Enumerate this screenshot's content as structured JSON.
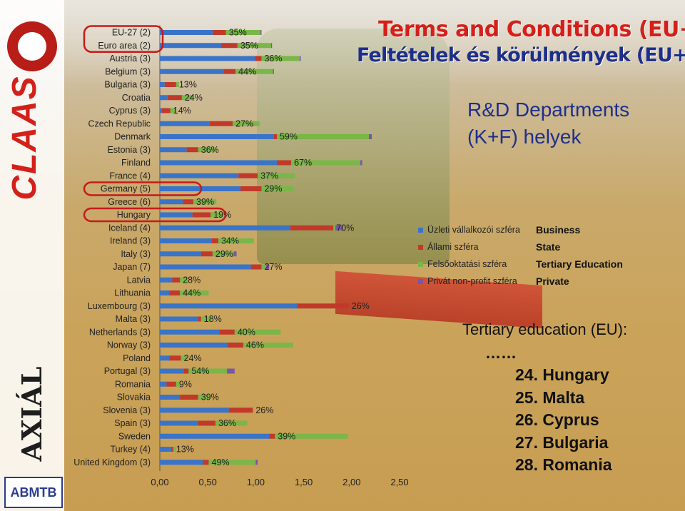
{
  "title_en": "Terms and Conditions (EU+)",
  "title_hu": "Feltételek és körülmények (EU+)",
  "subtitle_line1": "R&D Departments",
  "subtitle_line2": "(K+F) helyek",
  "colors": {
    "business": "#3a74c8",
    "state": "#c0392b",
    "tertiary": "#7ab648",
    "private": "#7a55a8",
    "highlight": "#c41b1b"
  },
  "legend": [
    {
      "hu": "Üzleti vállalkozói szféra",
      "en": "Business",
      "color": "#3a74c8"
    },
    {
      "hu": "Állami szféra",
      "en": "State",
      "color": "#c0392b"
    },
    {
      "hu": "Felsőoktatási szféra",
      "en": "Tertiary Education",
      "color": "#7ab648"
    },
    {
      "hu": "Privát non-profit szféra",
      "en": "Private",
      "color": "#7a55a8"
    }
  ],
  "ranking": {
    "heading": "Tertiary education (EU):",
    "ellipsis": "……",
    "items": [
      "24. Hungary",
      "25. Malta",
      "26. Cyprus",
      "27. Bulgaria",
      "28. Romania"
    ]
  },
  "logos": {
    "claas": "CLAAS",
    "axial": "AXIÁL",
    "abmtb": "ABMTB"
  },
  "chart_data": {
    "type": "bar",
    "orientation": "horizontal-stacked",
    "xlim": [
      0,
      2.5
    ],
    "xticks": [
      "0,00",
      "0,50",
      "1,00",
      "1,50",
      "2,00",
      "2,50"
    ],
    "categories": [
      "EU-27 (2)",
      "Euro area (2)",
      "Austria (3)",
      "Belgium (3)",
      "Bulgaria (3)",
      "Croatia",
      "Cyprus (3)",
      "Czech Republic",
      "Denmark",
      "Estonia (3)",
      "Finland",
      "France (4)",
      "Germany (5)",
      "Greece (6)",
      "Hungary",
      "Iceland (4)",
      "Ireland (3)",
      "Italy (3)",
      "Japan (7)",
      "Latvia",
      "Lithuania",
      "Luxembourg (3)",
      "Malta (3)",
      "Netherlands (3)",
      "Norway (3)",
      "Poland",
      "Portugal (3)",
      "Romania",
      "Slovakia",
      "Slovenia (3)",
      "Spain (3)",
      "Sweden",
      "Turkey (4)",
      "United Kingdom (3)"
    ],
    "labels": [
      "35%",
      "35%",
      "36%",
      "44%",
      "13%",
      "24%",
      "14%",
      "27%",
      "59%",
      "36%",
      "67%",
      "37%",
      "29%",
      "39%",
      "19%",
      "70%",
      "34%",
      "29%",
      "27%",
      "28%",
      "44%",
      "26%",
      "18%",
      "40%",
      "46%",
      "24%",
      "54%",
      "9%",
      "39%",
      "26%",
      "36%",
      "39%",
      "13%",
      "49%"
    ],
    "highlighted": [
      "EU-27 (2)",
      "Euro area (2)",
      "Germany (5)",
      "Hungary"
    ],
    "series": [
      {
        "name": "Üzleti vállalkozói szféra",
        "values": [
          0.55,
          0.64,
          0.99,
          0.67,
          0.05,
          0.08,
          0.02,
          0.52,
          1.19,
          0.28,
          1.22,
          0.82,
          0.84,
          0.24,
          0.34,
          1.36,
          0.54,
          0.43,
          0.95,
          0.13,
          0.1,
          1.43,
          0.4,
          0.62,
          0.71,
          0.1,
          0.25,
          0.07,
          0.21,
          0.72,
          0.4,
          1.14,
          0.12,
          0.45
        ]
      },
      {
        "name": "Állami szféra",
        "values": [
          0.14,
          0.17,
          0.07,
          0.12,
          0.12,
          0.15,
          0.09,
          0.24,
          0.03,
          0.12,
          0.15,
          0.2,
          0.22,
          0.11,
          0.19,
          0.45,
          0.07,
          0.12,
          0.11,
          0.08,
          0.11,
          0.54,
          0.03,
          0.16,
          0.16,
          0.12,
          0.05,
          0.1,
          0.19,
          0.25,
          0.18,
          0.06,
          0.02,
          0.06
        ]
      },
      {
        "name": "Felsőoktatási szféra",
        "values": [
          0.36,
          0.35,
          0.4,
          0.39,
          0.03,
          0.12,
          0.05,
          0.28,
          0.96,
          0.18,
          0.72,
          0.39,
          0.34,
          0.24,
          0.13,
          0.02,
          0.37,
          0.22,
          0.05,
          0.08,
          0.3,
          0.0,
          0.11,
          0.48,
          0.52,
          0.07,
          0.4,
          0.04,
          0.12,
          0.0,
          0.33,
          0.76,
          0.03,
          0.49
        ]
      },
      {
        "name": "Privát non-profit szféra",
        "values": [
          0.01,
          0.01,
          0.01,
          0.01,
          0.0,
          0.0,
          0.01,
          0.0,
          0.03,
          0.0,
          0.02,
          0.0,
          0.0,
          0.0,
          0.0,
          0.08,
          0.0,
          0.03,
          0.03,
          0.0,
          0.0,
          0.0,
          0.0,
          0.0,
          0.0,
          0.0,
          0.08,
          0.0,
          0.0,
          0.0,
          0.0,
          0.0,
          0.0,
          0.02
        ]
      }
    ]
  }
}
